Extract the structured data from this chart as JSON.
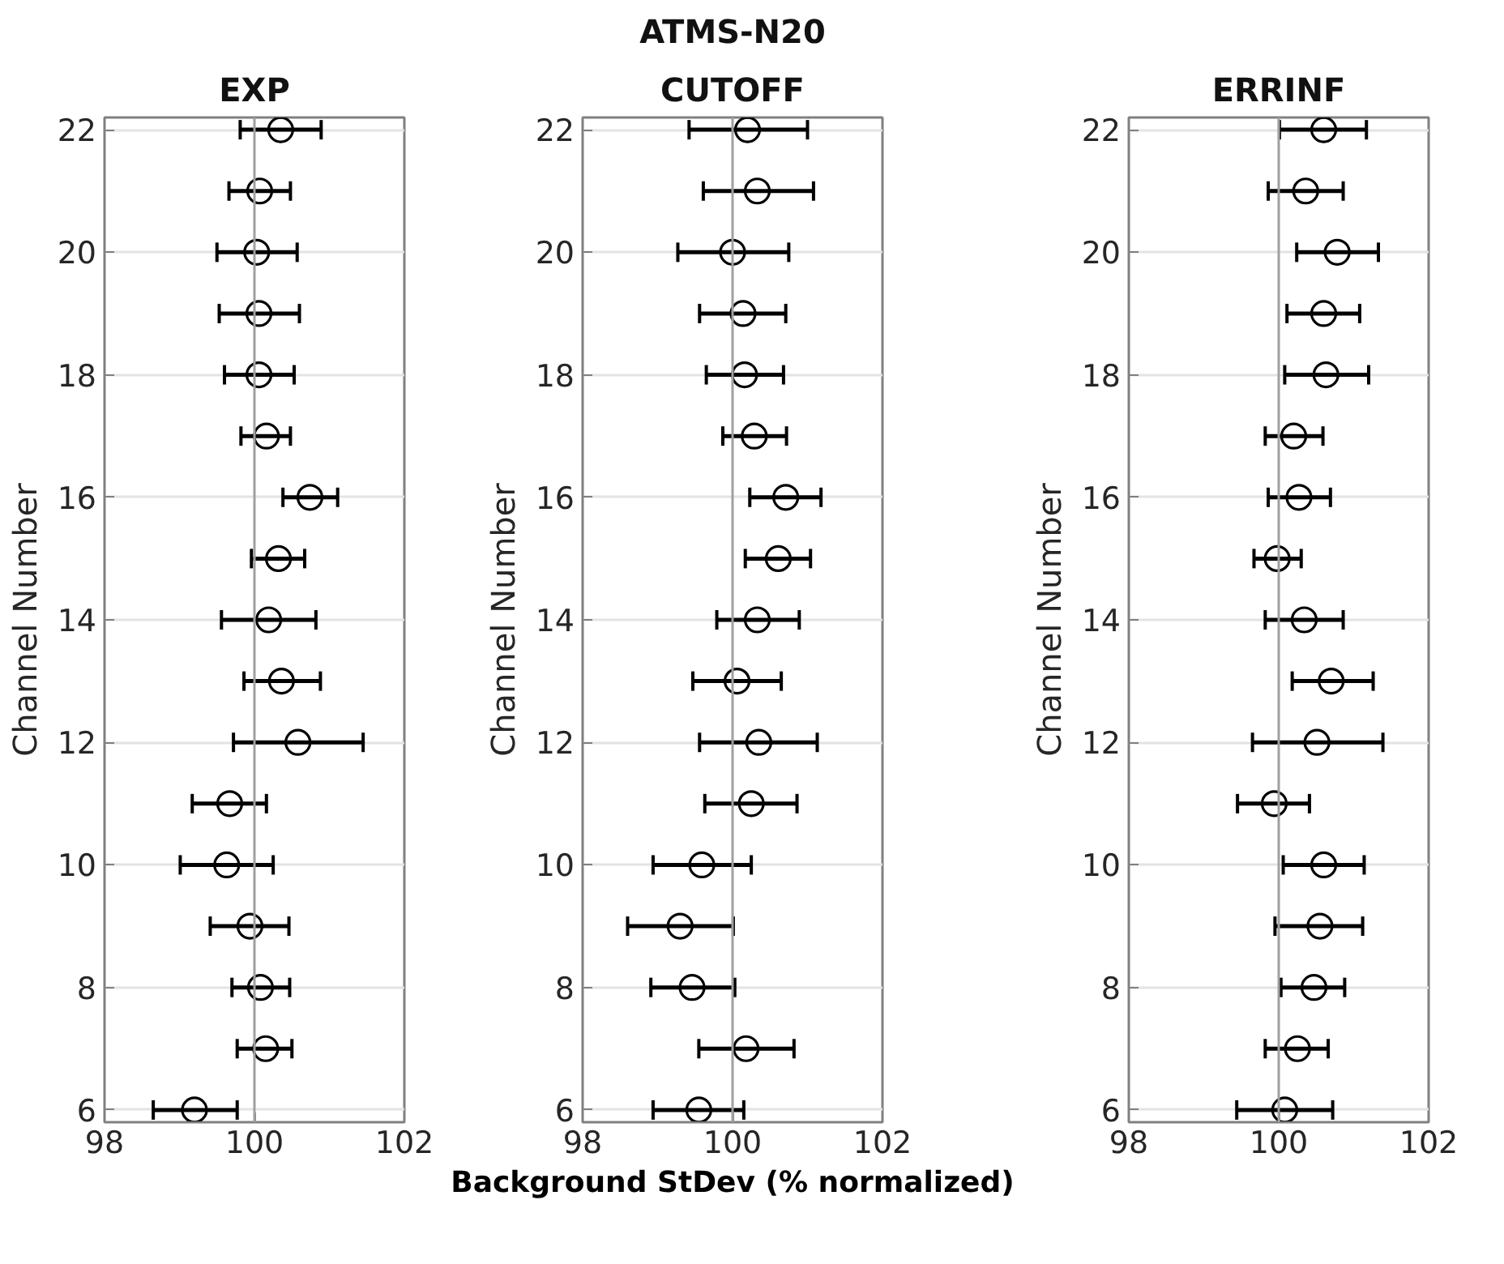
{
  "chart_data": [
    {
      "type": "scatter",
      "title": "EXP",
      "ylabel": "Channel Number",
      "marker": "circle",
      "grid": "y",
      "ref_lines": [
        {
          "axis": "x",
          "value": 100,
          "color": "#a0a0a0"
        }
      ],
      "xlim": [
        98,
        102
      ],
      "xticks": [
        98,
        100,
        102
      ],
      "ylim": [
        5.8,
        22.2
      ],
      "yticks": [
        6,
        8,
        10,
        12,
        14,
        16,
        18,
        20,
        22
      ],
      "series": [
        {
          "color": "#000000",
          "x": [
            99.2,
            100.15,
            100.08,
            99.94,
            99.63,
            99.67,
            100.58,
            100.36,
            100.19,
            100.32,
            100.74,
            100.16,
            100.06,
            100.06,
            100.03,
            100.07,
            100.35
          ],
          "values": [
            6,
            7,
            8,
            9,
            10,
            11,
            12,
            13,
            14,
            15,
            16,
            17,
            18,
            19,
            20,
            21,
            22
          ],
          "xerrors": [
            [
              98.65,
              99.77
            ],
            [
              99.77,
              100.5
            ],
            [
              99.7,
              100.47
            ],
            [
              99.41,
              100.46
            ],
            [
              99.01,
              100.25
            ],
            [
              99.17,
              100.16
            ],
            [
              99.72,
              101.45
            ],
            [
              99.86,
              100.88
            ],
            [
              99.56,
              100.82
            ],
            [
              99.96,
              100.67
            ],
            [
              100.38,
              101.11
            ],
            [
              99.82,
              100.48
            ],
            [
              99.6,
              100.53
            ],
            [
              99.53,
              100.6
            ],
            [
              99.5,
              100.57
            ],
            [
              99.66,
              100.48
            ],
            [
              99.81,
              100.89
            ]
          ]
        }
      ]
    },
    {
      "type": "scatter",
      "title": "ATMS-N20",
      "subtitle": "CUTOFF",
      "xlabel": "Background StDev (% normalized)",
      "ylabel": "Channel Number",
      "marker": "circle",
      "grid": "y",
      "ref_lines": [
        {
          "axis": "x",
          "value": 100,
          "color": "#a0a0a0"
        }
      ],
      "xlim": [
        98,
        102
      ],
      "xticks": [
        98,
        100,
        102
      ],
      "ylim": [
        5.8,
        22.2
      ],
      "yticks": [
        6,
        8,
        10,
        12,
        14,
        16,
        18,
        20,
        22
      ],
      "series": [
        {
          "color": "#000000",
          "x": [
            99.55,
            100.18,
            99.46,
            99.3,
            99.59,
            100.25,
            100.35,
            100.06,
            100.33,
            100.61,
            100.71,
            100.29,
            100.16,
            100.14,
            100.0,
            100.33,
            100.2
          ],
          "values": [
            6,
            7,
            8,
            9,
            10,
            11,
            12,
            13,
            14,
            15,
            16,
            17,
            18,
            19,
            20,
            21,
            22
          ],
          "xerrors": [
            [
              98.94,
              100.15
            ],
            [
              99.55,
              100.82
            ],
            [
              98.91,
              100.03
            ],
            [
              98.6,
              100.01
            ],
            [
              98.94,
              100.25
            ],
            [
              99.63,
              100.86
            ],
            [
              99.56,
              101.13
            ],
            [
              99.47,
              100.65
            ],
            [
              99.79,
              100.89
            ],
            [
              100.17,
              101.04
            ],
            [
              100.23,
              101.18
            ],
            [
              99.87,
              100.72
            ],
            [
              99.65,
              100.68
            ],
            [
              99.56,
              100.71
            ],
            [
              99.27,
              100.75
            ],
            [
              99.61,
              101.08
            ],
            [
              99.42,
              101.0
            ]
          ]
        }
      ]
    },
    {
      "type": "scatter",
      "title": "ERRINF",
      "ylabel": "Channel Number",
      "marker": "circle",
      "grid": "y",
      "ref_lines": [
        {
          "axis": "x",
          "value": 100,
          "color": "#a0a0a0"
        }
      ],
      "xlim": [
        98,
        102
      ],
      "xticks": [
        98,
        100,
        102
      ],
      "ylim": [
        5.8,
        22.2
      ],
      "yticks": [
        6,
        8,
        10,
        12,
        14,
        16,
        18,
        20,
        22
      ],
      "series": [
        {
          "color": "#000000",
          "x": [
            100.08,
            100.25,
            100.47,
            100.55,
            100.6,
            99.94,
            100.51,
            100.7,
            100.34,
            99.98,
            100.27,
            100.2,
            100.63,
            100.6,
            100.78,
            100.36,
            100.6
          ],
          "values": [
            6,
            7,
            8,
            9,
            10,
            11,
            12,
            13,
            14,
            15,
            16,
            17,
            18,
            19,
            20,
            21,
            22
          ],
          "xerrors": [
            [
              99.44,
              100.72
            ],
            [
              99.82,
              100.66
            ],
            [
              100.03,
              100.88
            ],
            [
              99.95,
              101.12
            ],
            [
              100.06,
              101.14
            ],
            [
              99.45,
              100.41
            ],
            [
              99.65,
              101.39
            ],
            [
              100.18,
              101.26
            ],
            [
              99.82,
              100.86
            ],
            [
              99.67,
              100.3
            ],
            [
              99.86,
              100.69
            ],
            [
              99.82,
              100.59
            ],
            [
              100.08,
              101.2
            ],
            [
              100.11,
              101.08
            ],
            [
              100.24,
              101.33
            ],
            [
              99.86,
              100.86
            ],
            [
              100.01,
              101.17
            ]
          ]
        }
      ]
    }
  ]
}
